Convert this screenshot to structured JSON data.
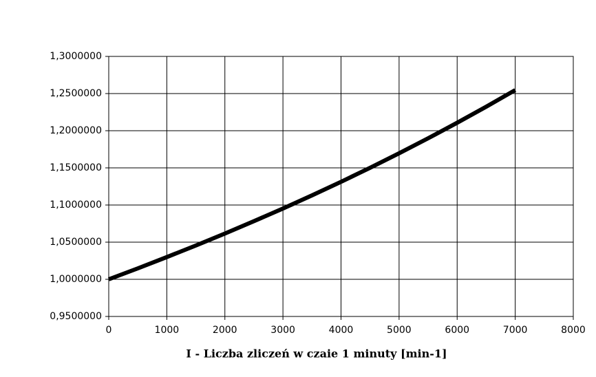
{
  "chart_data": {
    "type": "line",
    "x_label": "I - Liczba zliczeń w czaie 1 minuty [min-1]",
    "x": [
      0,
      500,
      1000,
      1500,
      2000,
      2500,
      3000,
      3500,
      4000,
      4500,
      5000,
      5500,
      6000,
      6500,
      7000
    ],
    "values": [
      1.0,
      1.0147,
      1.0299,
      1.0455,
      1.0616,
      1.0782,
      1.0953,
      1.113,
      1.1312,
      1.1501,
      1.1696,
      1.1898,
      1.2107,
      1.2323,
      1.2547
    ],
    "color": "#000000",
    "xlim": [
      0,
      8000
    ],
    "xticks": [
      0,
      1000,
      2000,
      3000,
      4000,
      5000,
      6000,
      7000,
      8000
    ],
    "ylim": [
      0.95,
      1.3
    ],
    "yticks": [
      {
        "value": 0.95,
        "label": "0,9500000"
      },
      {
        "value": 1.0,
        "label": "1,0000000"
      },
      {
        "value": 1.05,
        "label": "1,0500000"
      },
      {
        "value": 1.1,
        "label": "1,1000000"
      },
      {
        "value": 1.15,
        "label": "1,1500000"
      },
      {
        "value": 1.2,
        "label": "1,2000000"
      },
      {
        "value": 1.25,
        "label": "1,2500000"
      },
      {
        "value": 1.3,
        "label": "1,3000000"
      }
    ],
    "grid": true
  }
}
